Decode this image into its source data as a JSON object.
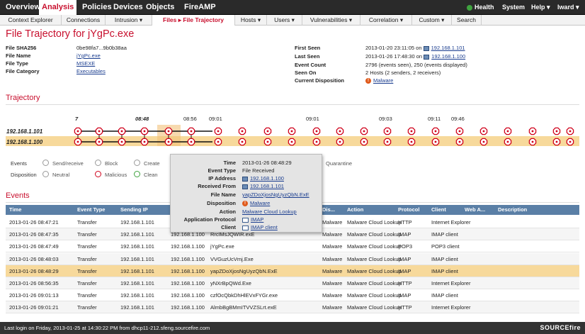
{
  "nav": {
    "main": [
      "Overview",
      "Analysis",
      "Policies",
      "Devices",
      "Objects",
      "FireAMP"
    ],
    "health": "Health",
    "system": "System",
    "help": "Help ▾",
    "user": "lward ▾"
  },
  "subnav": [
    "Context Explorer",
    "Connections",
    "Intrusion ▾",
    "Files ▸ File Trajectory",
    "Hosts ▾",
    "Users ▾",
    "Vulnerabilities ▾",
    "Correlation ▾",
    "Custom ▾",
    "Search"
  ],
  "page_title": "File Trajectory for jYgPc.exe",
  "file_info": {
    "sha_label": "File SHA256",
    "sha": "0be98fa7...9b0b38aa",
    "name_label": "File Name",
    "name": "jYgPc.exe",
    "type_label": "File Type",
    "type": "MSEXE",
    "cat_label": "File Category",
    "cat": "Executables"
  },
  "seen_info": {
    "first_label": "First Seen",
    "first": "2013-01-20 23:11:05 on",
    "first_host": "192.168.1.101",
    "last_label": "Last Seen",
    "last": "2013-01-26 17:48:30 on",
    "last_host": "192.168.1.100",
    "count_label": "Event Count",
    "count": "2796 (events seen), 250 (events displayed)",
    "seenon_label": "Seen On",
    "seenon": "2 Hosts (2 senders, 2 receivers)",
    "disp_label": "Current Disposition",
    "disp": "Malware"
  },
  "trajectory": {
    "title": "Trajectory",
    "ticks": [
      "7",
      "08:48",
      "08:56",
      "09:01",
      "09:01",
      "09:03",
      "09:11",
      "09:46"
    ],
    "hosts": [
      "192.168.1.101",
      "192.168.1.100"
    ]
  },
  "legend": {
    "events_label": "Events",
    "send_receive": "Send/receive",
    "block": "Block",
    "create": "Create",
    "quarantine": "Quarantine",
    "disposition_label": "Disposition",
    "neutral": "Neutral",
    "malicious": "Malicious",
    "clean": "Clean"
  },
  "popup": {
    "time_label": "Time",
    "time": "2013-01-26 08:48:29",
    "etype_label": "Event Type",
    "etype": "File Received",
    "ip_label": "IP Address",
    "ip": "192.168.1.100",
    "recv_label": "Received From",
    "recv": "192.168.1.101",
    "fname_label": "File Name",
    "fname": "yapZDoXjosNgUyzQbN.ExE",
    "disp_label": "Disposition",
    "disp": "Malware",
    "action_label": "Action",
    "action": "Malware Cloud Lookup",
    "proto_label": "Application Protocol",
    "proto": "IMAP",
    "client_label": "Client",
    "client": "IMAP client"
  },
  "events": {
    "title": "Events",
    "columns": [
      "Time",
      "Event Type",
      "Sending IP",
      "Dis...",
      "Action",
      "Protocol",
      "Client",
      "Web A...",
      "Description"
    ],
    "rows": [
      [
        "2013-01-26 08:47:21",
        "Transfer",
        "192.168.1.101",
        "",
        "",
        "Malware",
        "Malware Cloud Lookup",
        "HTTP",
        "Internet Explorer"
      ],
      [
        "2013-01-26 08:47:35",
        "Transfer",
        "192.168.1.101",
        "192.168.1.100",
        "RrclMsJQWIR.exE",
        "Malware",
        "Malware Cloud Lookup",
        "IMAP",
        "IMAP client"
      ],
      [
        "2013-01-26 08:47:49",
        "Transfer",
        "192.168.1.101",
        "192.168.1.100",
        "jYgPc.exe",
        "Malware",
        "Malware Cloud Lookup",
        "POP3",
        "POP3 client"
      ],
      [
        "2013-01-26 08:48:03",
        "Transfer",
        "192.168.1.101",
        "192.168.1.100",
        "VVGuzUcVmj.Exe",
        "Malware",
        "Malware Cloud Lookup",
        "IMAP",
        "IMAP client"
      ],
      [
        "2013-01-26 08:48:29",
        "Transfer",
        "192.168.1.101",
        "192.168.1.100",
        "yapZDoXjosNgUyzQbN.ExE",
        "Malware",
        "Malware Cloud Lookup",
        "IMAP",
        "IMAP client"
      ],
      [
        "2013-01-26 08:56:35",
        "Transfer",
        "192.168.1.101",
        "192.168.1.100",
        "yNXrBpQWd.Exe",
        "Malware",
        "Malware Cloud Lookup",
        "HTTP",
        "Internet Explorer"
      ],
      [
        "2013-01-26 09:01:13",
        "Transfer",
        "192.168.1.101",
        "192.168.1.100",
        "czfOcQbkDhHlEVxFYGr.exe",
        "Malware",
        "Malware Cloud Lookup",
        "IMAP",
        "IMAP client"
      ],
      [
        "2013-01-26 09:01:21",
        "Transfer",
        "192.168.1.101",
        "192.168.1.100",
        "AlmbBgBMmITVVZSLrt.exE",
        "Malware",
        "Malware Cloud Lookup",
        "HTTP",
        "Internet Explorer"
      ]
    ]
  },
  "footer": {
    "login": "Last login on Friday, 2013-01-25 at 14:30:22 PM from dhcp11-212.sfeng.sourcefire.com",
    "brand": "SOURCEfire"
  },
  "colors": {
    "accent": "#c8102e",
    "header": "#5a7fa6",
    "highlight": "#f7d99b"
  }
}
